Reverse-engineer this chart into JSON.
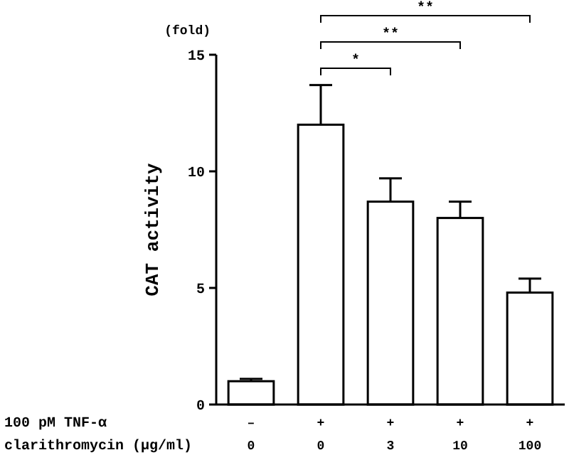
{
  "chart_data": {
    "type": "bar",
    "ylabel": "CAT activity",
    "xlabel": "100 pM TNF-α\nclarithromycin (μg/ml)",
    "categories": [
      "–\n0",
      "+\n0",
      "+\n3",
      "+\n10",
      "+\n100"
    ],
    "values": [
      1.0,
      12.0,
      8.7,
      8.0,
      4.8
    ],
    "errors": [
      [
        1.0,
        1.1
      ],
      [
        12.0,
        13.7
      ],
      [
        8.7,
        9.7
      ],
      [
        8.0,
        8.7
      ],
      [
        4.8,
        5.4
      ]
    ],
    "color": "#ffffff",
    "ylim": [
      0,
      15
    ],
    "yticks": [
      0,
      5,
      10,
      15
    ],
    "grid": false,
    "annotations": [
      "(fold)",
      "*",
      "**",
      "**"
    ]
  }
}
